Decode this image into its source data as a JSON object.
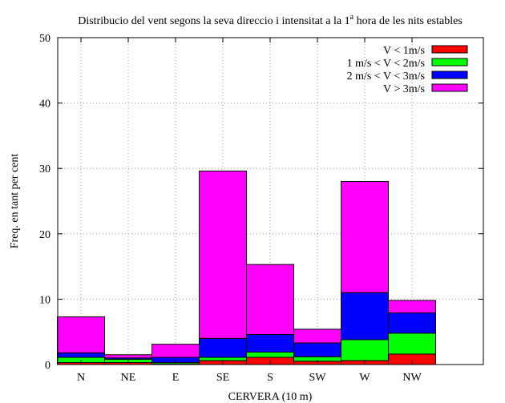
{
  "chart_data": {
    "type": "bar",
    "stacked": true,
    "title": "Distribucio del vent segons la seva direccio i intensitat a la 1",
    "title_superscript": "a",
    "title_tail": " hora de les nits estables",
    "xlabel": "CERVERA (10 m)",
    "ylabel": "Freq. en tant per cent",
    "ylim": [
      0,
      50
    ],
    "yticks": [
      0,
      10,
      20,
      30,
      40,
      50
    ],
    "grid": true,
    "legend_position": "top-right",
    "categories": [
      "N",
      "NE",
      "E",
      "SE",
      "S",
      "SW",
      "W",
      "NW"
    ],
    "series": [
      {
        "name": "V < 1m/s",
        "color": "#ff0000",
        "values": [
          0.3,
          0.3,
          0.1,
          0.6,
          1.1,
          0.5,
          0.6,
          1.6
        ]
      },
      {
        "name": "1 m/s < V < 2m/s",
        "color": "#00ff00",
        "values": [
          0.8,
          0.5,
          0.2,
          0.5,
          0.8,
          0.7,
          3.2,
          3.2
        ]
      },
      {
        "name": "2 m/s < V < 3m/s",
        "color": "#0000ff",
        "values": [
          0.7,
          0.2,
          0.8,
          2.9,
          2.7,
          2.1,
          7.2,
          3.1
        ]
      },
      {
        "name": "V > 3m/s",
        "color": "#ff00ff",
        "values": [
          5.5,
          0.5,
          2.0,
          25.6,
          10.7,
          2.1,
          17.0,
          1.9
        ]
      }
    ]
  }
}
